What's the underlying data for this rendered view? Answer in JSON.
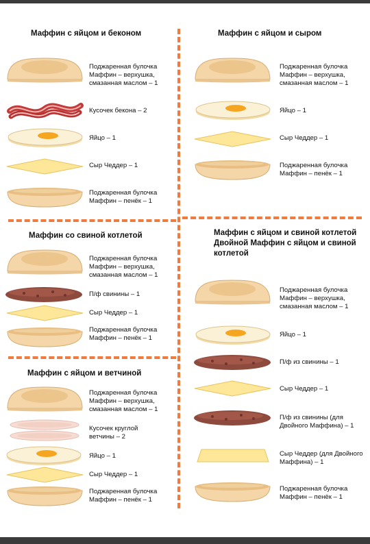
{
  "sections": [
    {
      "title": "Маффин с яйцом и беконом",
      "items": [
        {
          "icon": "bun-top-icon",
          "label": "Поджаренная булочка Маффин – верхушка, смазанная маслом – 1"
        },
        {
          "icon": "bacon-icon",
          "label": "Кусочек бекона – 2"
        },
        {
          "icon": "egg-icon",
          "label": "Яйцо – 1"
        },
        {
          "icon": "cheese-icon",
          "label": "Сыр Чеддер – 1"
        },
        {
          "icon": "bun-bottom-icon",
          "label": "Поджаренная булочка Маффин – пенёк – 1"
        }
      ]
    },
    {
      "title": "Маффин с яйцом и сыром",
      "items": [
        {
          "icon": "bun-top-icon",
          "label": "Поджаренная булочка Маффин – верхушка, смазанная маслом – 1"
        },
        {
          "icon": "egg-icon",
          "label": "Яйцо – 1"
        },
        {
          "icon": "cheese-icon",
          "label": "Сыр Чеддер – 1"
        },
        {
          "icon": "bun-bottom-icon",
          "label": "Поджаренная булочка Маффин – пенёк – 1"
        }
      ]
    },
    {
      "title": "Маффин со свиной котлетой",
      "items": [
        {
          "icon": "bun-top-icon",
          "label": "Поджаренная булочка Маффин – верхушка, смазанная маслом – 1"
        },
        {
          "icon": "pork-patty-icon",
          "label": "П/ф свинины – 1"
        },
        {
          "icon": "cheese-icon",
          "label": "Сыр Чеддер – 1"
        },
        {
          "icon": "bun-bottom-icon",
          "label": "Поджаренная булочка Маффин – пенёк – 1"
        }
      ]
    },
    {
      "title": "Маффин с яйцом и свиной котлетой Двойной Маффин с яйцом и свиной котлетой",
      "items": [
        {
          "icon": "bun-top-icon",
          "label": "Поджаренная булочка Маффин – верхушка, смазанная маслом – 1"
        },
        {
          "icon": "egg-icon",
          "label": "Яйцо – 1"
        },
        {
          "icon": "pork-patty-icon",
          "label": "П/ф из свинины – 1"
        },
        {
          "icon": "cheese-icon",
          "label": "Сыр Чеддер – 1"
        },
        {
          "icon": "pork-patty-icon",
          "label": "П/ф из свинины (для Двойного Маффина) – 1"
        },
        {
          "icon": "cheese-slice-icon",
          "label": "Сыр Чеддер (для Двойного Маффина) – 1"
        },
        {
          "icon": "bun-bottom-icon",
          "label": "Поджаренная булочка Маффин – пенёк – 1"
        }
      ]
    },
    {
      "title": "Маффин с яйцом и ветчиной",
      "items": [
        {
          "icon": "bun-top-icon",
          "label": "Поджаренная булочка Маффин – верхушка, смазанная маслом – 1"
        },
        {
          "icon": "ham-icon",
          "label": "Кусочек круглой ветчины – 2"
        },
        {
          "icon": "egg-icon",
          "label": "Яйцо – 1"
        },
        {
          "icon": "cheese-icon",
          "label": "Сыр Чеддер – 1"
        },
        {
          "icon": "bun-bottom-icon",
          "label": "Поджаренная булочка Маффин – пенёк – 1"
        }
      ]
    }
  ],
  "colors": {
    "divider": "#f07b3f",
    "bun": "#f6dcb0",
    "egg_yolk": "#f6a521",
    "cheese": "#ffe79a",
    "pork": "#8f4a3e",
    "bacon": "#c23a3a",
    "ham": "#f2cfc4"
  }
}
